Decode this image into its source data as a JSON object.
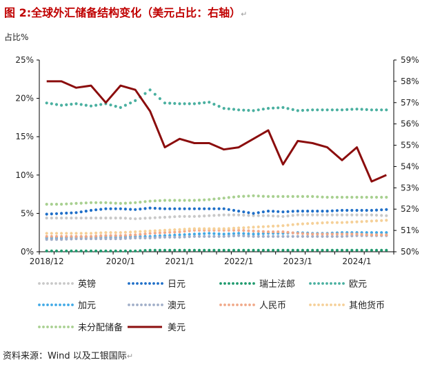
{
  "title": "图 2:全球外汇储备结构变化（美元占比：右轴）",
  "return_mark": "↵",
  "source": "资料来源：Wind 以及工银国际",
  "chart_data": {
    "type": "line",
    "ylabel": "占比%",
    "y_left": {
      "ticks": [
        "0%",
        "5%",
        "10%",
        "15%",
        "20%",
        "25%"
      ],
      "range": [
        0,
        25
      ]
    },
    "y_right": {
      "ticks": [
        "50%",
        "51%",
        "52%",
        "53%",
        "54%",
        "55%",
        "56%",
        "57%",
        "58%",
        "59%"
      ],
      "range": [
        50,
        59
      ]
    },
    "x_ticks": [
      "2018/12",
      "2020/1",
      "2021/1",
      "2022/1",
      "2023/1",
      "2024/1"
    ],
    "x_tick_index": [
      0,
      5,
      9,
      13,
      17,
      21
    ],
    "n_points": 24,
    "series": [
      {
        "name": "英镑",
        "color": "#c8c8c8",
        "axis": "left",
        "style": "dotted",
        "values": [
          4.4,
          4.4,
          4.4,
          4.4,
          4.4,
          4.4,
          4.3,
          4.4,
          4.5,
          4.6,
          4.6,
          4.7,
          4.8,
          4.8,
          4.7,
          4.7,
          4.6,
          4.8,
          4.8,
          4.8,
          4.8,
          4.8,
          4.8,
          4.7
        ]
      },
      {
        "name": "日元",
        "color": "#1f6fc8",
        "axis": "left",
        "style": "dotted",
        "values": [
          4.9,
          5.0,
          5.1,
          5.4,
          5.6,
          5.6,
          5.5,
          5.7,
          5.6,
          5.6,
          5.6,
          5.6,
          5.6,
          5.3,
          5.0,
          5.3,
          5.2,
          5.3,
          5.3,
          5.3,
          5.4,
          5.4,
          5.4,
          5.5
        ]
      },
      {
        "name": "瑞士法郎",
        "color": "#1f9a6e",
        "axis": "left",
        "style": "dotted",
        "values": [
          0.1,
          0.1,
          0.1,
          0.1,
          0.1,
          0.1,
          0.1,
          0.2,
          0.2,
          0.2,
          0.2,
          0.2,
          0.2,
          0.2,
          0.2,
          0.2,
          0.2,
          0.2,
          0.2,
          0.2,
          0.2,
          0.2,
          0.2,
          0.2
        ]
      },
      {
        "name": "欧元",
        "color": "#4ab0a0",
        "axis": "left",
        "style": "dotted",
        "values": [
          19.4,
          19.1,
          19.3,
          19.0,
          19.3,
          18.8,
          19.7,
          21.1,
          19.4,
          19.3,
          19.3,
          19.5,
          18.7,
          18.5,
          18.4,
          18.7,
          18.8,
          18.4,
          18.5,
          18.5,
          18.5,
          18.6,
          18.5,
          18.5
        ]
      },
      {
        "name": "加元",
        "color": "#3fa9e6",
        "axis": "left",
        "style": "dotted",
        "values": [
          1.8,
          1.8,
          1.9,
          1.9,
          1.9,
          1.9,
          2.0,
          2.0,
          2.1,
          2.2,
          2.3,
          2.4,
          2.3,
          2.4,
          2.3,
          2.4,
          2.4,
          2.5,
          2.4,
          2.4,
          2.5,
          2.5,
          2.5,
          2.5
        ]
      },
      {
        "name": "澳元",
        "color": "#a0aec8",
        "axis": "left",
        "style": "dotted",
        "values": [
          1.6,
          1.6,
          1.7,
          1.7,
          1.7,
          1.7,
          1.8,
          1.8,
          1.9,
          1.9,
          2.0,
          2.0,
          2.0,
          2.1,
          2.0,
          2.0,
          2.0,
          2.0,
          2.0,
          2.0,
          2.0,
          2.1,
          2.1,
          2.1
        ]
      },
      {
        "name": "人民币",
        "color": "#f0a888",
        "axis": "left",
        "style": "dotted",
        "values": [
          2.0,
          2.0,
          2.0,
          2.0,
          2.1,
          2.1,
          2.2,
          2.4,
          2.5,
          2.6,
          2.8,
          2.8,
          2.8,
          2.8,
          2.7,
          2.6,
          2.6,
          2.4,
          2.3,
          2.3,
          2.3,
          2.3,
          2.2,
          2.2
        ]
      },
      {
        "name": "其他货币",
        "color": "#f5d098",
        "axis": "left",
        "style": "dotted",
        "values": [
          2.4,
          2.4,
          2.4,
          2.4,
          2.5,
          2.5,
          2.6,
          2.7,
          2.8,
          2.9,
          3.0,
          3.0,
          3.0,
          3.1,
          3.2,
          3.3,
          3.4,
          3.6,
          3.7,
          3.8,
          3.8,
          3.9,
          4.0,
          4.1
        ]
      },
      {
        "name": "未分配储备",
        "color": "#a8d090",
        "axis": "left",
        "style": "dotted",
        "values": [
          6.2,
          6.2,
          6.3,
          6.4,
          6.4,
          6.3,
          6.4,
          6.6,
          6.7,
          6.7,
          6.7,
          6.8,
          7.0,
          7.2,
          7.3,
          7.2,
          7.2,
          7.2,
          7.2,
          7.1,
          7.1,
          7.1,
          7.1,
          7.1
        ]
      },
      {
        "name": "美元",
        "color": "#8b0d0d",
        "axis": "right",
        "style": "solid",
        "values": [
          58.0,
          58.0,
          57.7,
          57.8,
          57.0,
          57.8,
          57.6,
          56.6,
          54.9,
          55.3,
          55.1,
          55.1,
          54.8,
          54.9,
          55.3,
          55.7,
          54.1,
          55.2,
          55.1,
          54.9,
          54.3,
          54.9,
          53.3,
          53.6
        ]
      }
    ],
    "legend": {
      "placement": "bottom",
      "columns": 4
    }
  }
}
